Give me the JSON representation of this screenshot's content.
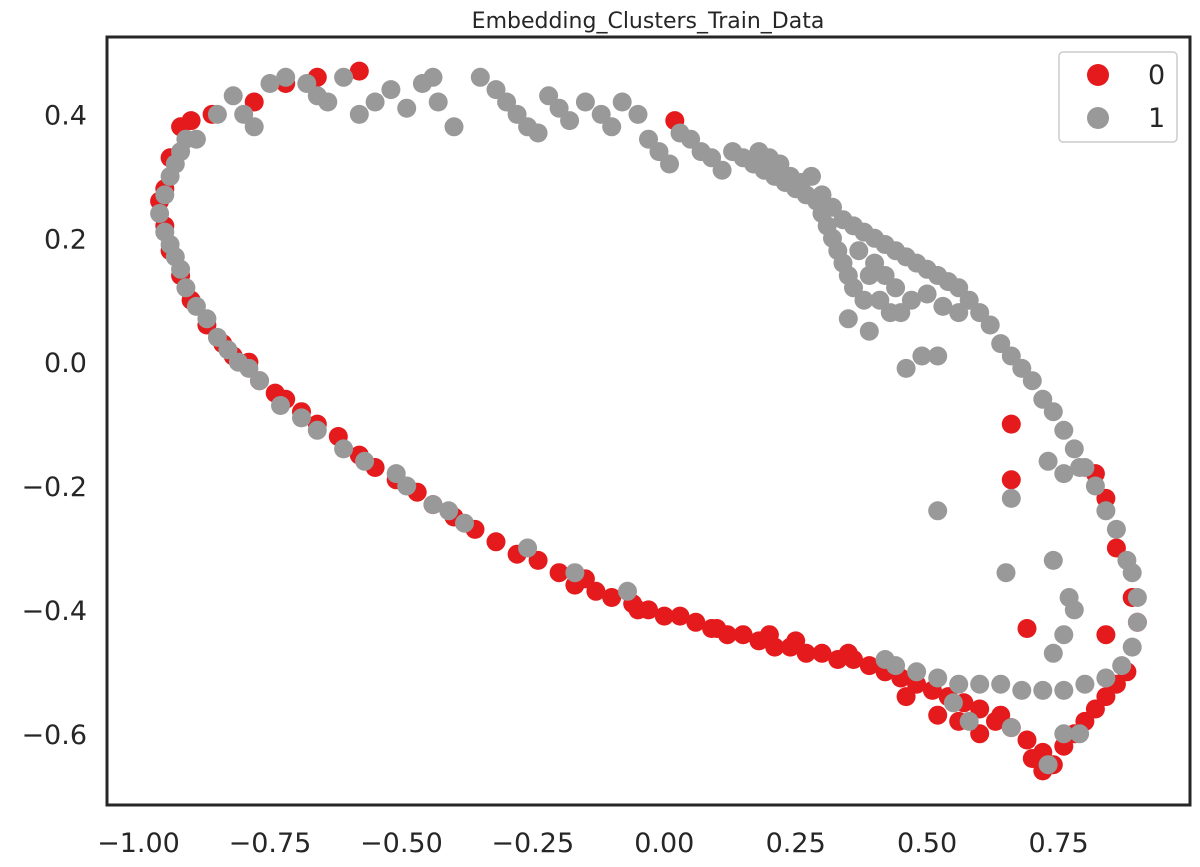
{
  "chart_data": {
    "type": "scatter",
    "title": "Embedding_Clusters_Train_Data",
    "xlabel": "",
    "ylabel": "",
    "xlim": [
      -1.06,
      1.0
    ],
    "ylim": [
      -0.715,
      0.525
    ],
    "xticks": [
      -1.0,
      -0.75,
      -0.5,
      -0.25,
      0.0,
      0.25,
      0.5,
      0.75
    ],
    "yticks": [
      -0.6,
      -0.4,
      -0.2,
      0.0,
      0.2,
      0.4
    ],
    "xtick_labels": [
      "−1.00",
      "−0.75",
      "−0.50",
      "−0.25",
      "0.00",
      "0.25",
      "0.50",
      "0.75"
    ],
    "ytick_labels": [
      "−0.6",
      "−0.4",
      "−0.2",
      "0.0",
      "0.2",
      "0.4"
    ],
    "grid": false,
    "legend_position": "top-right",
    "series": [
      {
        "name": "0",
        "color": "#e41a1c",
        "points": [
          [
            -0.58,
            0.47
          ],
          [
            -0.66,
            0.46
          ],
          [
            -0.72,
            0.45
          ],
          [
            -0.78,
            0.42
          ],
          [
            -0.86,
            0.4
          ],
          [
            -0.9,
            0.39
          ],
          [
            -0.92,
            0.38
          ],
          [
            -0.94,
            0.33
          ],
          [
            -0.95,
            0.28
          ],
          [
            -0.96,
            0.26
          ],
          [
            -0.95,
            0.22
          ],
          [
            -0.94,
            0.18
          ],
          [
            -0.92,
            0.14
          ],
          [
            -0.9,
            0.1
          ],
          [
            -0.87,
            0.06
          ],
          [
            -0.84,
            0.03
          ],
          [
            -0.82,
            0.01
          ],
          [
            -0.79,
            0.0
          ],
          [
            -0.77,
            -0.03
          ],
          [
            -0.74,
            -0.05
          ],
          [
            -0.72,
            -0.06
          ],
          [
            -0.69,
            -0.08
          ],
          [
            -0.66,
            -0.1
          ],
          [
            -0.62,
            -0.12
          ],
          [
            -0.58,
            -0.15
          ],
          [
            -0.55,
            -0.17
          ],
          [
            -0.51,
            -0.19
          ],
          [
            -0.47,
            -0.21
          ],
          [
            -0.44,
            -0.23
          ],
          [
            -0.4,
            -0.25
          ],
          [
            -0.36,
            -0.27
          ],
          [
            -0.32,
            -0.29
          ],
          [
            -0.28,
            -0.31
          ],
          [
            -0.24,
            -0.32
          ],
          [
            -0.2,
            -0.34
          ],
          [
            -0.17,
            -0.36
          ],
          [
            -0.13,
            -0.37
          ],
          [
            -0.1,
            -0.38
          ],
          [
            -0.06,
            -0.39
          ],
          [
            -0.03,
            -0.4
          ],
          [
            0.0,
            -0.41
          ],
          [
            0.03,
            -0.41
          ],
          [
            0.06,
            -0.42
          ],
          [
            0.09,
            -0.43
          ],
          [
            0.12,
            -0.44
          ],
          [
            0.15,
            -0.44
          ],
          [
            0.18,
            -0.45
          ],
          [
            0.21,
            -0.46
          ],
          [
            0.24,
            -0.46
          ],
          [
            0.27,
            -0.47
          ],
          [
            0.3,
            -0.47
          ],
          [
            0.33,
            -0.48
          ],
          [
            0.36,
            -0.48
          ],
          [
            0.39,
            -0.49
          ],
          [
            0.42,
            -0.5
          ],
          [
            0.45,
            -0.51
          ],
          [
            0.48,
            -0.52
          ],
          [
            0.51,
            -0.53
          ],
          [
            0.54,
            -0.54
          ],
          [
            0.57,
            -0.55
          ],
          [
            0.6,
            -0.56
          ],
          [
            0.63,
            -0.58
          ],
          [
            0.66,
            -0.59
          ],
          [
            0.69,
            -0.61
          ],
          [
            0.72,
            -0.63
          ],
          [
            0.74,
            -0.65
          ],
          [
            0.72,
            -0.66
          ],
          [
            0.7,
            -0.64
          ],
          [
            0.76,
            -0.62
          ],
          [
            0.78,
            -0.6
          ],
          [
            0.8,
            -0.58
          ],
          [
            0.82,
            -0.56
          ],
          [
            0.84,
            -0.54
          ],
          [
            0.86,
            -0.52
          ],
          [
            0.88,
            -0.5
          ],
          [
            0.9,
            -0.42
          ],
          [
            0.89,
            -0.38
          ],
          [
            0.86,
            -0.3
          ],
          [
            0.84,
            -0.22
          ],
          [
            0.82,
            -0.18
          ],
          [
            0.66,
            -0.1
          ],
          [
            0.66,
            -0.19
          ],
          [
            0.69,
            -0.43
          ],
          [
            0.84,
            -0.44
          ],
          [
            0.2,
            -0.44
          ],
          [
            0.1,
            -0.43
          ],
          [
            0.46,
            -0.54
          ],
          [
            0.52,
            -0.57
          ],
          [
            0.56,
            -0.58
          ],
          [
            0.6,
            -0.6
          ],
          [
            0.64,
            -0.57
          ],
          [
            -0.05,
            -0.4
          ],
          [
            -0.15,
            -0.35
          ],
          [
            0.02,
            0.39
          ],
          [
            0.25,
            -0.45
          ],
          [
            0.35,
            -0.47
          ]
        ]
      },
      {
        "name": "1",
        "color": "#999999",
        "points": [
          [
            -0.96,
            0.24
          ],
          [
            -0.95,
            0.21
          ],
          [
            -0.94,
            0.19
          ],
          [
            -0.93,
            0.17
          ],
          [
            -0.92,
            0.15
          ],
          [
            -0.91,
            0.12
          ],
          [
            -0.89,
            0.09
          ],
          [
            -0.87,
            0.07
          ],
          [
            -0.85,
            0.04
          ],
          [
            -0.83,
            0.02
          ],
          [
            -0.81,
            0.0
          ],
          [
            -0.79,
            -0.01
          ],
          [
            -0.77,
            -0.03
          ],
          [
            -0.73,
            -0.07
          ],
          [
            -0.69,
            -0.09
          ],
          [
            -0.66,
            -0.11
          ],
          [
            -0.61,
            -0.14
          ],
          [
            -0.57,
            -0.16
          ],
          [
            -0.51,
            -0.18
          ],
          [
            -0.49,
            -0.2
          ],
          [
            -0.44,
            -0.23
          ],
          [
            -0.41,
            -0.24
          ],
          [
            -0.38,
            -0.26
          ],
          [
            -0.26,
            -0.3
          ],
          [
            -0.17,
            -0.34
          ],
          [
            -0.07,
            -0.37
          ],
          [
            -0.95,
            0.27
          ],
          [
            -0.94,
            0.3
          ],
          [
            -0.93,
            0.32
          ],
          [
            -0.92,
            0.34
          ],
          [
            -0.91,
            0.36
          ],
          [
            -0.89,
            0.36
          ],
          [
            -0.85,
            0.4
          ],
          [
            -0.82,
            0.43
          ],
          [
            -0.8,
            0.4
          ],
          [
            -0.78,
            0.38
          ],
          [
            -0.75,
            0.45
          ],
          [
            -0.72,
            0.46
          ],
          [
            -0.68,
            0.45
          ],
          [
            -0.66,
            0.43
          ],
          [
            -0.64,
            0.42
          ],
          [
            -0.61,
            0.46
          ],
          [
            -0.58,
            0.4
          ],
          [
            -0.55,
            0.42
          ],
          [
            -0.52,
            0.44
          ],
          [
            -0.49,
            0.41
          ],
          [
            -0.46,
            0.45
          ],
          [
            -0.44,
            0.46
          ],
          [
            -0.43,
            0.42
          ],
          [
            -0.4,
            0.38
          ],
          [
            -0.35,
            0.46
          ],
          [
            -0.32,
            0.44
          ],
          [
            -0.3,
            0.42
          ],
          [
            -0.28,
            0.4
          ],
          [
            -0.26,
            0.38
          ],
          [
            -0.24,
            0.37
          ],
          [
            -0.22,
            0.43
          ],
          [
            -0.2,
            0.41
          ],
          [
            -0.18,
            0.39
          ],
          [
            -0.15,
            0.42
          ],
          [
            -0.12,
            0.4
          ],
          [
            -0.1,
            0.38
          ],
          [
            -0.08,
            0.42
          ],
          [
            -0.05,
            0.4
          ],
          [
            -0.03,
            0.36
          ],
          [
            -0.01,
            0.34
          ],
          [
            0.01,
            0.32
          ],
          [
            0.03,
            0.37
          ],
          [
            0.05,
            0.36
          ],
          [
            0.07,
            0.34
          ],
          [
            0.09,
            0.33
          ],
          [
            0.11,
            0.31
          ],
          [
            0.13,
            0.34
          ],
          [
            0.15,
            0.33
          ],
          [
            0.17,
            0.32
          ],
          [
            0.19,
            0.31
          ],
          [
            0.21,
            0.3
          ],
          [
            0.23,
            0.29
          ],
          [
            0.25,
            0.28
          ],
          [
            0.27,
            0.27
          ],
          [
            0.29,
            0.26
          ],
          [
            0.3,
            0.24
          ],
          [
            0.31,
            0.22
          ],
          [
            0.32,
            0.2
          ],
          [
            0.33,
            0.18
          ],
          [
            0.34,
            0.16
          ],
          [
            0.35,
            0.14
          ],
          [
            0.36,
            0.12
          ],
          [
            0.38,
            0.1
          ],
          [
            0.3,
            0.27
          ],
          [
            0.32,
            0.25
          ],
          [
            0.34,
            0.23
          ],
          [
            0.36,
            0.22
          ],
          [
            0.38,
            0.21
          ],
          [
            0.4,
            0.2
          ],
          [
            0.42,
            0.19
          ],
          [
            0.44,
            0.18
          ],
          [
            0.46,
            0.17
          ],
          [
            0.48,
            0.16
          ],
          [
            0.5,
            0.15
          ],
          [
            0.52,
            0.14
          ],
          [
            0.54,
            0.13
          ],
          [
            0.56,
            0.12
          ],
          [
            0.58,
            0.1
          ],
          [
            0.6,
            0.08
          ],
          [
            0.62,
            0.06
          ],
          [
            0.64,
            0.03
          ],
          [
            0.66,
            0.01
          ],
          [
            0.68,
            -0.01
          ],
          [
            0.7,
            -0.03
          ],
          [
            0.72,
            -0.06
          ],
          [
            0.74,
            -0.08
          ],
          [
            0.76,
            -0.11
          ],
          [
            0.78,
            -0.14
          ],
          [
            0.8,
            -0.17
          ],
          [
            0.82,
            -0.2
          ],
          [
            0.84,
            -0.24
          ],
          [
            0.86,
            -0.27
          ],
          [
            0.88,
            -0.32
          ],
          [
            0.89,
            -0.34
          ],
          [
            0.9,
            -0.38
          ],
          [
            0.9,
            -0.42
          ],
          [
            0.89,
            -0.46
          ],
          [
            0.87,
            -0.49
          ],
          [
            0.84,
            -0.51
          ],
          [
            0.8,
            -0.52
          ],
          [
            0.76,
            -0.53
          ],
          [
            0.72,
            -0.53
          ],
          [
            0.68,
            -0.53
          ],
          [
            0.64,
            -0.52
          ],
          [
            0.6,
            -0.52
          ],
          [
            0.56,
            -0.52
          ],
          [
            0.52,
            -0.51
          ],
          [
            0.48,
            -0.5
          ],
          [
            0.44,
            -0.49
          ],
          [
            0.42,
            -0.48
          ],
          [
            0.55,
            -0.55
          ],
          [
            0.58,
            -0.58
          ],
          [
            0.66,
            -0.59
          ],
          [
            0.76,
            -0.6
          ],
          [
            0.79,
            -0.6
          ],
          [
            0.73,
            -0.65
          ],
          [
            0.65,
            -0.34
          ],
          [
            0.66,
            -0.22
          ],
          [
            0.52,
            -0.24
          ],
          [
            0.74,
            -0.32
          ],
          [
            0.77,
            -0.38
          ],
          [
            0.78,
            -0.4
          ],
          [
            0.76,
            -0.44
          ],
          [
            0.74,
            -0.47
          ],
          [
            0.46,
            -0.01
          ],
          [
            0.49,
            0.01
          ],
          [
            0.52,
            0.01
          ],
          [
            0.39,
            0.05
          ],
          [
            0.35,
            0.07
          ],
          [
            0.45,
            0.08
          ],
          [
            0.47,
            0.1
          ],
          [
            0.5,
            0.11
          ],
          [
            0.53,
            0.09
          ],
          [
            0.56,
            0.08
          ],
          [
            0.73,
            -0.16
          ],
          [
            0.76,
            -0.18
          ],
          [
            0.79,
            -0.17
          ],
          [
            0.28,
            0.3
          ],
          [
            0.26,
            0.29
          ],
          [
            0.24,
            0.3
          ],
          [
            0.22,
            0.32
          ],
          [
            0.2,
            0.33
          ],
          [
            0.18,
            0.34
          ],
          [
            0.4,
            0.16
          ],
          [
            0.42,
            0.14
          ],
          [
            0.44,
            0.12
          ],
          [
            0.37,
            0.18
          ],
          [
            0.39,
            0.14
          ],
          [
            0.41,
            0.1
          ],
          [
            0.43,
            0.08
          ]
        ]
      }
    ]
  }
}
